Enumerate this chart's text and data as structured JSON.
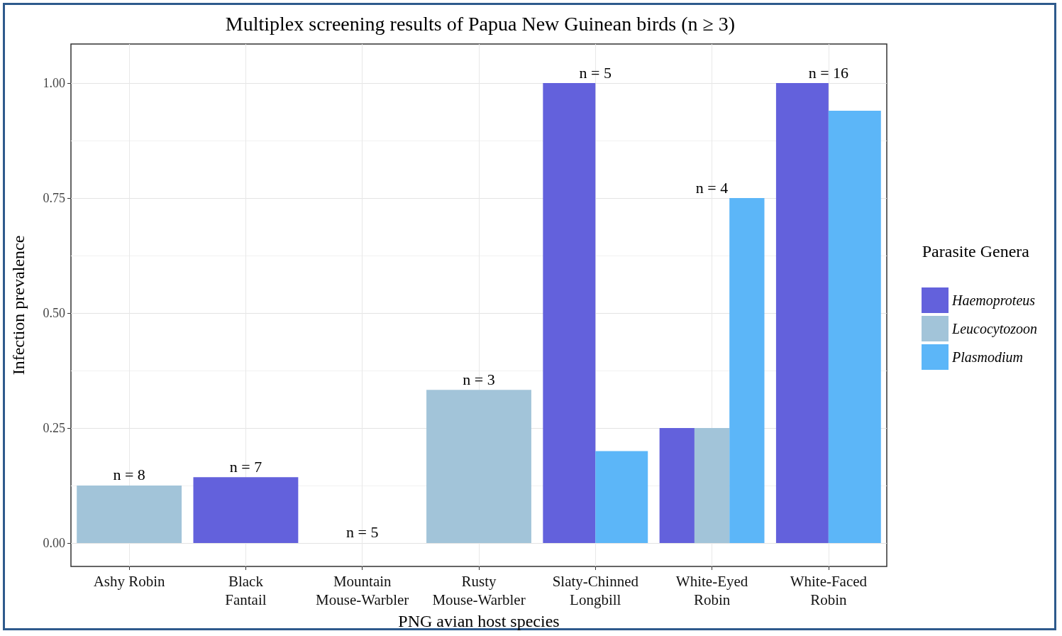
{
  "chart_data": {
    "type": "bar",
    "title": "Multiplex screening results of Papua New Guinean birds (n ≥ 3)",
    "xlabel": "PNG avian host species",
    "ylabel": "Infection prevalence",
    "legend_title": "Parasite Genera",
    "categories": [
      "Ashy Robin",
      "Black\nFantail",
      "Mountain\nMouse-Warbler",
      "Rusty\nMouse-Warbler",
      "Slaty-Chinned\nLongbill",
      "White-Eyed\nRobin",
      "White-Faced\nRobin"
    ],
    "series": [
      {
        "name": "Haemoproteus",
        "color": "#6361dc",
        "values": [
          null,
          0.143,
          null,
          null,
          1.0,
          0.25,
          1.0
        ]
      },
      {
        "name": "Leucocytozoon",
        "color": "#a2c4d9",
        "values": [
          0.125,
          null,
          null,
          0.333,
          null,
          0.25,
          null
        ]
      },
      {
        "name": "Plasmodium",
        "color": "#5cb6f8",
        "values": [
          null,
          null,
          null,
          null,
          0.2,
          0.75,
          0.94
        ]
      }
    ],
    "ylim": [
      -0.051,
      1.085
    ],
    "yticks": [
      {
        "value": 0,
        "label": "0.00"
      },
      {
        "value": 0.25,
        "label": "0.25"
      },
      {
        "value": 0.5,
        "label": "0.50"
      },
      {
        "value": 0.75,
        "label": "0.75"
      },
      {
        "value": 1,
        "label": "1.00"
      }
    ],
    "annotations": [
      "n = 8",
      "n = 7",
      "n = 5",
      "n = 3",
      "n = 5",
      "n = 4",
      "n = 16"
    ],
    "grid": true,
    "legend": "right"
  }
}
